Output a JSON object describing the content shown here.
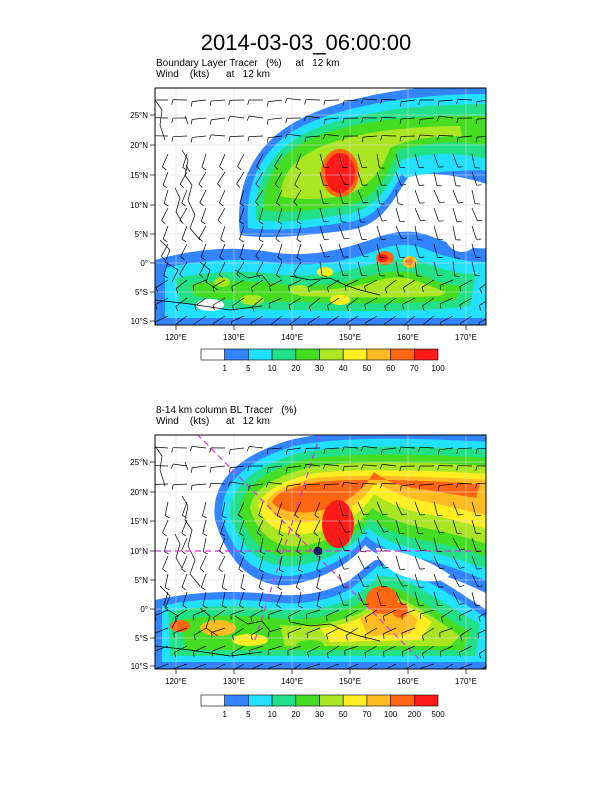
{
  "title": "2014-03-03_06:00:00",
  "panels": [
    {
      "label_line1": "Boundary Layer Tracer   (%)     at   12 km",
      "label_line2": "Wind    (kts)      at   12 km",
      "lat_ticks": [
        "25°N",
        "20°N",
        "15°N",
        "10°N",
        "5°N",
        "0°",
        "5°S",
        "10°S"
      ],
      "lon_ticks": [
        "120°E",
        "130°E",
        "140°E",
        "150°E",
        "160°E",
        "170°E"
      ],
      "colorbar_labels": [
        "1",
        "5",
        "10",
        "20",
        "30",
        "40",
        "50",
        "60",
        "70",
        "100"
      ]
    },
    {
      "label_line1": "8-14 km column BL Tracer   (%)",
      "label_line2": "Wind    (kts)      at   12 km",
      "lat_ticks": [
        "25°N",
        "20°N",
        "15°N",
        "10°N",
        "5°N",
        "0°",
        "5°S",
        "10°S"
      ],
      "lon_ticks": [
        "120°E",
        "130°E",
        "140°E",
        "150°E",
        "160°E",
        "170°E"
      ],
      "colorbar_labels": [
        "1",
        "5",
        "10",
        "20",
        "30",
        "50",
        "70",
        "100",
        "200",
        "500"
      ]
    }
  ],
  "colors": {
    "levels": [
      "#ffffff",
      "#3385ff",
      "#22e0ff",
      "#22e088",
      "#44dd22",
      "#aae622",
      "#ffee22",
      "#ffbb22",
      "#ff6611",
      "#ff1a1a"
    ],
    "crosshair": "#dd33dd"
  }
}
